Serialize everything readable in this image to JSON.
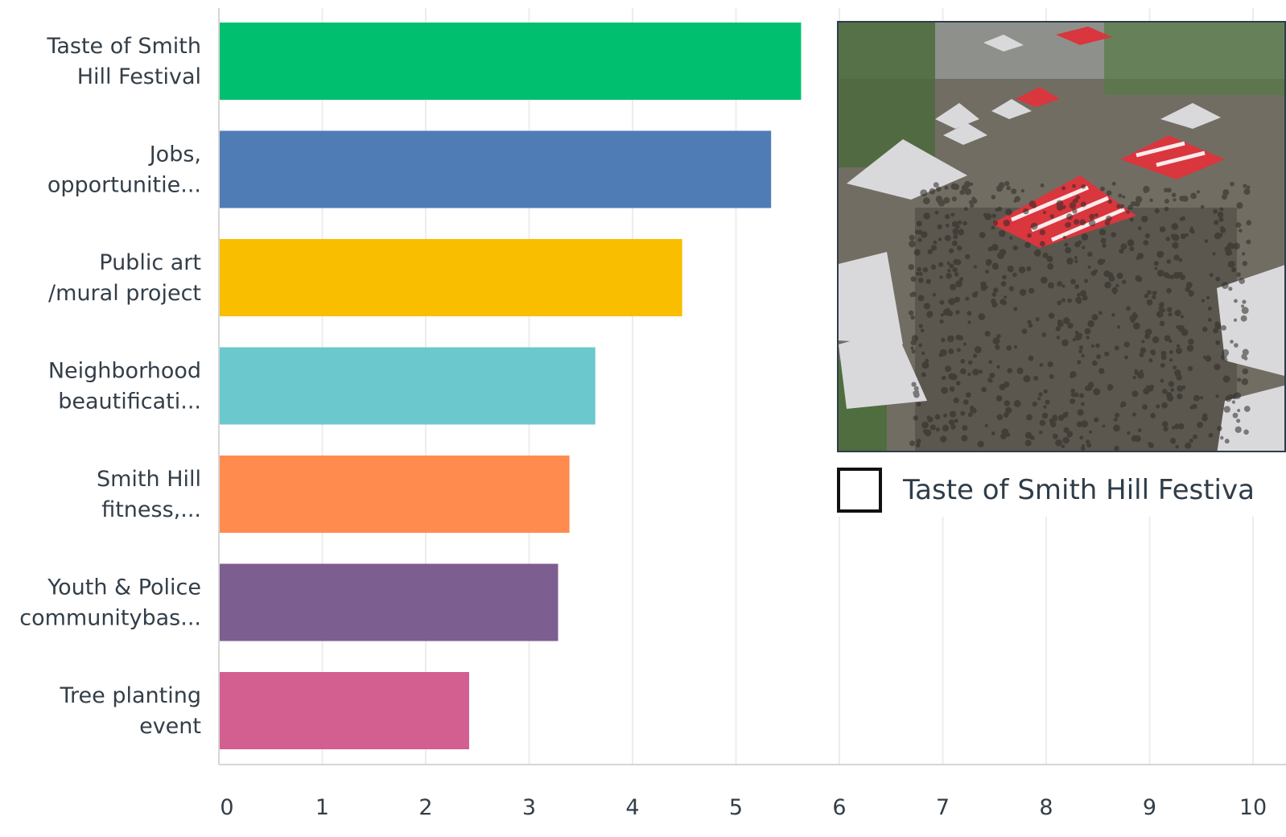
{
  "chart_data": {
    "type": "bar",
    "orientation": "horizontal",
    "categories": [
      [
        "Taste of Smith",
        "Hill Festival"
      ],
      [
        "Jobs,",
        "opportunitie..."
      ],
      [
        "Public art",
        "/mural project"
      ],
      [
        "Neighborhood",
        "beautificati..."
      ],
      [
        "Smith Hill",
        "fitness,..."
      ],
      [
        "Youth & Police",
        "communitybas..."
      ],
      [
        "Tree planting",
        "event"
      ]
    ],
    "values": [
      5.63,
      5.34,
      4.48,
      3.64,
      3.39,
      3.28,
      2.42
    ],
    "colors": [
      "#00bf6f",
      "#507cb6",
      "#f9be00",
      "#6bc8cd",
      "#ff8b4f",
      "#7d5e90",
      "#d25f90"
    ],
    "xlim": [
      0,
      10
    ],
    "xticks": [
      "0",
      "1",
      "2",
      "3",
      "4",
      "5",
      "6",
      "7",
      "8",
      "9",
      "10"
    ],
    "grid": true,
    "title": "",
    "xlabel": "",
    "ylabel": ""
  },
  "overlay": {
    "photo_icon": "festival-crowd-photo",
    "caption": "Taste of Smith Hill Festiva"
  }
}
